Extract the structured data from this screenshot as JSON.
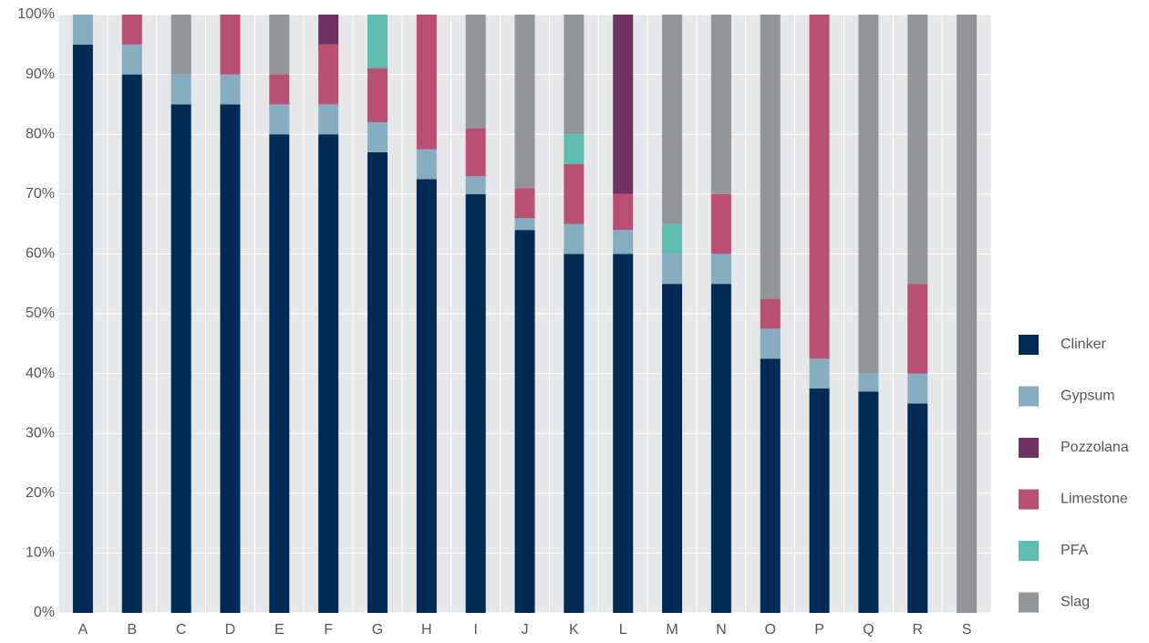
{
  "chart_data": {
    "type": "stacked_bar",
    "categories": [
      "A",
      "B",
      "C",
      "D",
      "E",
      "F",
      "G",
      "H",
      "I",
      "J",
      "K",
      "L",
      "M",
      "N",
      "O",
      "P",
      "Q",
      "R",
      "S"
    ],
    "series": [
      {
        "name": "Clinker",
        "color": "#002b54",
        "values": [
          95,
          90,
          85,
          85,
          80,
          80,
          77,
          72.5,
          70,
          64,
          60,
          60,
          55,
          55,
          42.5,
          37.5,
          37,
          35,
          0
        ]
      },
      {
        "name": "Gypsum",
        "color": "#87adc0",
        "values": [
          5,
          5,
          5,
          5,
          5,
          5,
          5,
          5,
          3,
          2,
          5,
          4,
          5,
          5,
          5,
          5,
          3,
          5,
          0
        ]
      },
      {
        "name": "Pozzolana",
        "color": "#6f3160",
        "values": [
          0,
          0,
          0,
          0,
          0,
          5,
          0,
          0,
          0,
          0,
          0,
          30,
          0,
          0,
          0,
          0,
          0,
          0,
          0
        ]
      },
      {
        "name": "Limestone",
        "color": "#b94f73",
        "values": [
          0,
          5,
          0,
          10,
          5,
          10,
          9,
          22.5,
          8,
          5,
          10,
          6,
          0,
          10,
          5,
          57.5,
          0,
          15,
          0
        ]
      },
      {
        "name": "PFA",
        "color": "#5fbcb0",
        "values": [
          0,
          0,
          0,
          0,
          0,
          0,
          9,
          0,
          0,
          0,
          5,
          0,
          5,
          0,
          0,
          0,
          0,
          0,
          0
        ]
      },
      {
        "name": "Slag",
        "color": "#939598",
        "values": [
          0,
          0,
          10,
          0,
          10,
          0,
          0,
          0,
          19,
          29,
          20,
          0,
          35,
          30,
          47.5,
          0,
          60,
          45,
          100
        ]
      }
    ],
    "ylim": [
      0,
      100
    ],
    "yticks": [
      {
        "value": 0,
        "label": "0%"
      },
      {
        "value": 10,
        "label": "10%"
      },
      {
        "value": 20,
        "label": "20%"
      },
      {
        "value": 30,
        "label": "30%"
      },
      {
        "value": 40,
        "label": "40%"
      },
      {
        "value": 50,
        "label": "50%"
      },
      {
        "value": 60,
        "label": "60%"
      },
      {
        "value": 70,
        "label": "70%"
      },
      {
        "value": 80,
        "label": "80%"
      },
      {
        "value": 90,
        "label": "90%"
      },
      {
        "value": 100,
        "label": "100%"
      }
    ],
    "grid": true,
    "legend": "right"
  }
}
